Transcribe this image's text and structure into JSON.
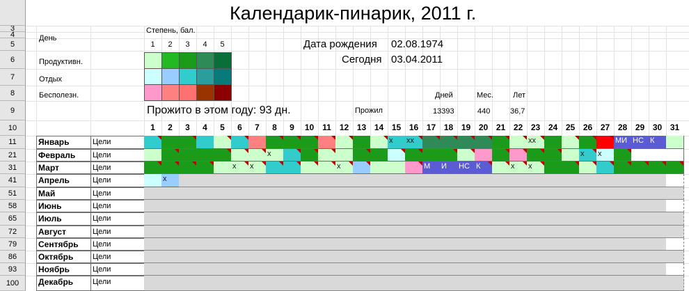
{
  "title": "Календарик-пинарик, 2011 г.",
  "labels": {
    "day": "День",
    "degree": "Степень, бал.",
    "productive": "Продуктивн.",
    "rest": "Отдых",
    "useless": "Бесполезн.",
    "birth_label": "Дата рождения",
    "birth_value": "02.08.1974",
    "today_label": "Сегодня",
    "today_value": "03.04.2011",
    "lived_year": "Прожито в этом году: 93 дн.",
    "lived": "Прожил",
    "days_h": "Дней",
    "months_h": "Мес.",
    "years_h": "Лет",
    "days_v": "13393",
    "months_v": "440",
    "years_v": "36,7",
    "goals": "Цели"
  },
  "degrees": [
    "1",
    "2",
    "3",
    "4",
    "5"
  ],
  "legend_colors": {
    "productive": [
      "#ccffcc",
      "#22b922",
      "#1a9b1a",
      "#2e8b57",
      "#0a6e38"
    ],
    "rest": [
      "#ccffff",
      "#99ccff",
      "#33cccc",
      "#2a9d9d",
      "#097a7a"
    ],
    "useless": [
      "#ff99cc",
      "#ff8080",
      "#ff7070",
      "#993300",
      "#8b0000"
    ]
  },
  "row_headers": [
    "3",
    "4",
    "5",
    "6",
    "7",
    "8",
    "9",
    "10",
    "11",
    "21",
    "31",
    "41",
    "51",
    "58",
    "65",
    "72",
    "79",
    "86",
    "93",
    "100"
  ],
  "day_numbers": [
    "1",
    "2",
    "3",
    "4",
    "5",
    "6",
    "7",
    "8",
    "9",
    "10",
    "11",
    "12",
    "13",
    "14",
    "15",
    "16",
    "17",
    "18",
    "19",
    "20",
    "21",
    "22",
    "23",
    "24",
    "25",
    "26",
    "27",
    "28",
    "29",
    "30",
    "31"
  ],
  "months": [
    "Январь",
    "Февраль",
    "Март",
    "Апрель",
    "Май",
    "Июнь",
    "Июль",
    "Август",
    "Сентябрь",
    "Октябрь",
    "Ноябрь",
    "Декабрь"
  ],
  "month_days": [
    31,
    28,
    31,
    30,
    31,
    30,
    31,
    31,
    30,
    31,
    30,
    31
  ],
  "palette": {
    "P1": "#ccffcc",
    "P2": "#22b922",
    "P3": "#1a9b1a",
    "P4": "#2e8b57",
    "R1": "#ccffff",
    "R2": "#99ccff",
    "R3": "#33cccc",
    "R4": "#2a9d9d",
    "U1": "#ff99cc",
    "U2": "#ff8080",
    "U4": "#993300",
    "RED": "#ff0000",
    "BLU": "#5b5bd6",
    "EMP": "#ffffff",
    "FUT": "#d9d9d9"
  },
  "calendar": [
    [
      "R3",
      "P3",
      "P3",
      "R3",
      "P1",
      "R3",
      "U2",
      "P3",
      "P3",
      "P3",
      "U2",
      "P1",
      "P3",
      "P1",
      "R3",
      "R3",
      "P4",
      "P4",
      "P4",
      "P4",
      "P3",
      "P1",
      "P1",
      "P3",
      "P1",
      "P3",
      "RED",
      "BLU",
      "BLU",
      "BLU",
      "P1"
    ],
    [
      "P1",
      "P3",
      "P3",
      "P3",
      "P3",
      "P1",
      "P1",
      "P1",
      "R3",
      "P3",
      "P1",
      "P1",
      "P3",
      "P3",
      "R1",
      "P3",
      "P3",
      "P3",
      "P1",
      "U1",
      "P3",
      "U1",
      "P3",
      "P3",
      "P1",
      "R3",
      "R1",
      "P3"
    ],
    [
      "P3",
      "P3",
      "P3",
      "P3",
      "P1",
      "P1",
      "P1",
      "R3",
      "R3",
      "P1",
      "P1",
      "P1",
      "R2",
      "P1",
      "P1",
      "U1",
      "BLU",
      "BLU",
      "BLU",
      "BLU",
      "P1",
      "P1",
      "P1",
      "P3",
      "P3",
      "P1",
      "R3",
      "P3",
      "P3",
      "P3",
      "P3"
    ],
    [
      "R1",
      "R2",
      "FUT",
      "FUT",
      "FUT",
      "FUT",
      "FUT",
      "FUT",
      "FUT",
      "FUT",
      "FUT",
      "FUT",
      "FUT",
      "FUT",
      "FUT",
      "FUT",
      "FUT",
      "FUT",
      "FUT",
      "FUT",
      "FUT",
      "FUT",
      "FUT",
      "FUT",
      "FUT",
      "FUT",
      "FUT",
      "FUT",
      "FUT",
      "FUT"
    ]
  ],
  "marks": [
    [
      "",
      "",
      "",
      "",
      "",
      "",
      "",
      "",
      "",
      "",
      "",
      "",
      "",
      "",
      "х",
      "хх",
      "",
      "",
      "",
      "",
      "",
      "",
      "хх",
      "",
      "",
      "",
      "",
      "МИ",
      "НС",
      "К",
      ""
    ],
    [
      "",
      "",
      "",
      "",
      "",
      "",
      "",
      "х",
      "",
      "",
      "",
      "",
      "",
      "",
      "",
      "",
      "",
      "",
      "",
      "",
      "",
      "",
      "",
      "",
      "",
      "х",
      "х",
      ""
    ],
    [
      "",
      "",
      "",
      "",
      "",
      "х",
      "х",
      "",
      "",
      "",
      "",
      "х",
      "",
      "",
      "",
      "",
      "М",
      "И",
      "НС",
      "К",
      "",
      "х",
      "х",
      "",
      "",
      "",
      "",
      "",
      "",
      "",
      ""
    ],
    [
      "",
      "х",
      "",
      "",
      "",
      "",
      "",
      "",
      "",
      "",
      "",
      "",
      "",
      "",
      "",
      "",
      "",
      "",
      "",
      "",
      "",
      "",
      "",
      "",
      "",
      "",
      "",
      "",
      "",
      "",
      ""
    ]
  ],
  "marker_days": [
    [
      1,
      3,
      5,
      6,
      8,
      9,
      10,
      11,
      12,
      14,
      16,
      17,
      18,
      19,
      20,
      21,
      22,
      23,
      25,
      26,
      27
    ],
    [
      2,
      5,
      6,
      7,
      9,
      10,
      11,
      13,
      15,
      16,
      18,
      19,
      21,
      22,
      23,
      24,
      26,
      28
    ],
    [
      1,
      2,
      3,
      4,
      6,
      7,
      8,
      9,
      10,
      11,
      12,
      13,
      16,
      20,
      21,
      22,
      23,
      25,
      26,
      27,
      28,
      29,
      30,
      31
    ],
    []
  ]
}
